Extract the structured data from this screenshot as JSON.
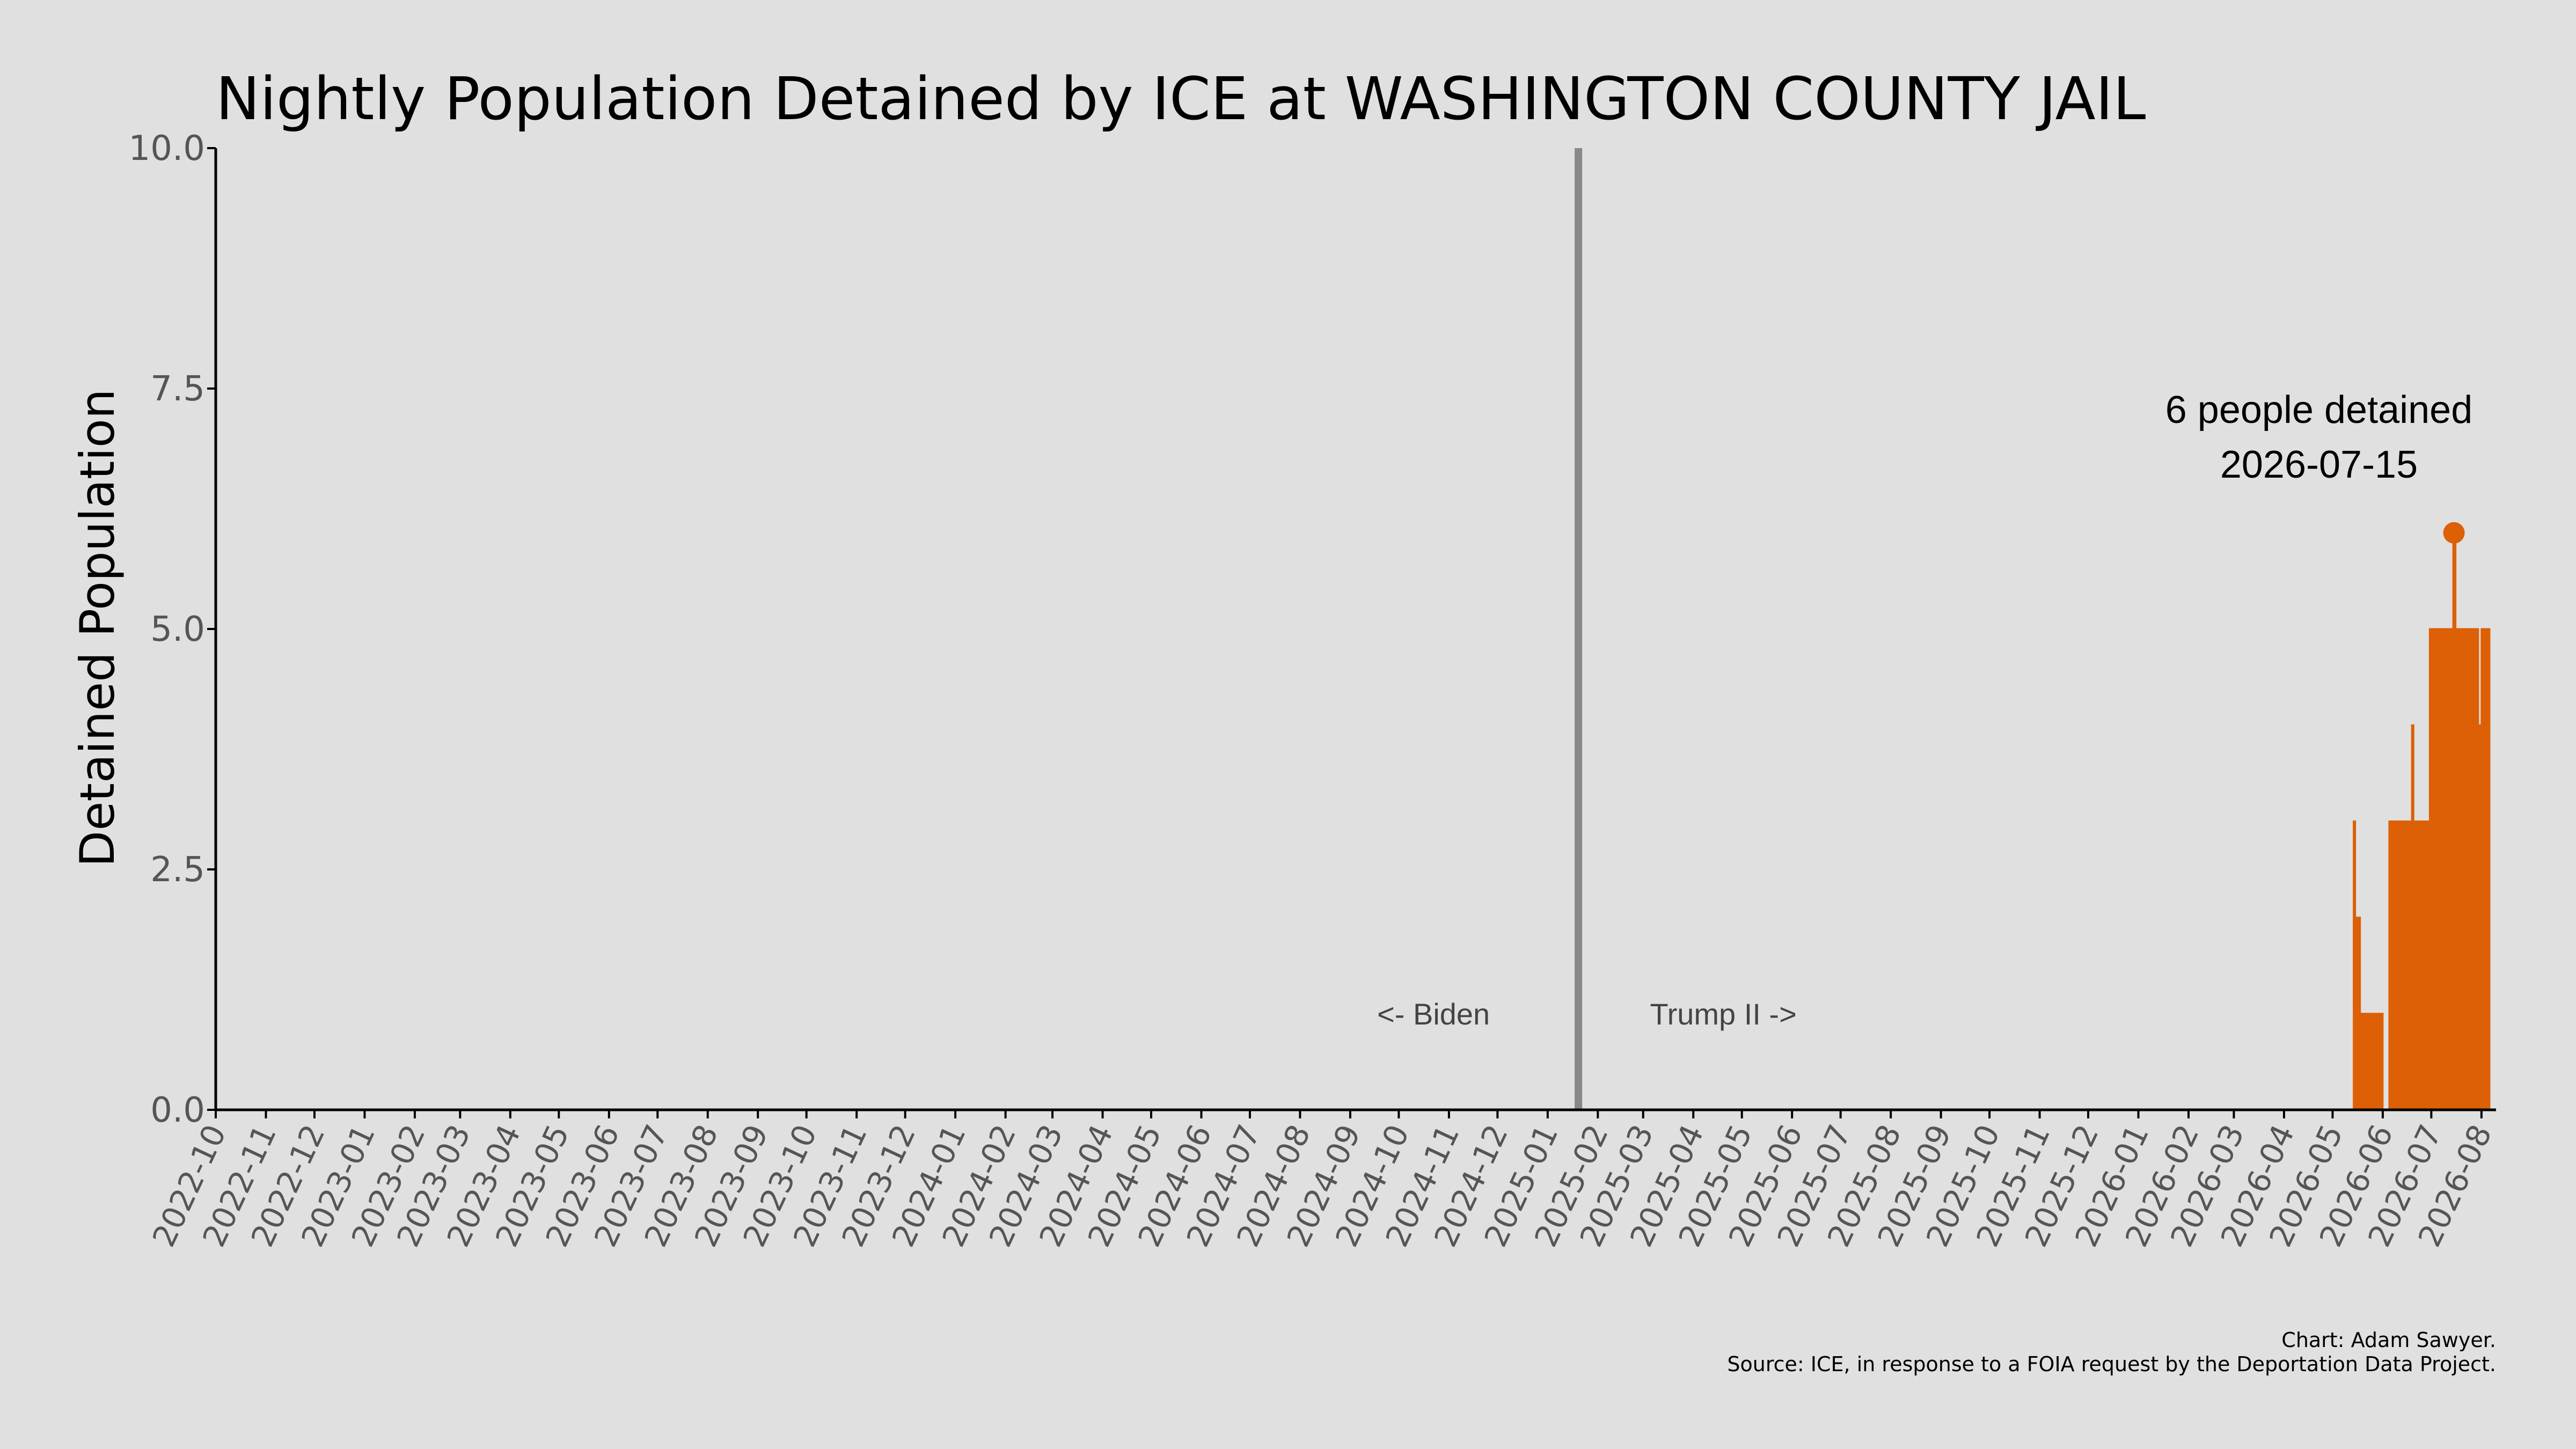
{
  "chart_data": {
    "type": "area",
    "title": "Nightly Population Detained by ICE at WASHINGTON COUNTY JAIL",
    "xlabel": "",
    "ylabel": "Detained Population",
    "ylim": [
      0,
      10
    ],
    "yticks": [
      "0.0",
      "2.5",
      "5.0",
      "7.5",
      "10.0"
    ],
    "xlim": [
      "2022-10-01",
      "2026-08-10"
    ],
    "xticks": [
      "2022-10",
      "2022-11",
      "2022-12",
      "2023-01",
      "2023-02",
      "2023-03",
      "2023-04",
      "2023-05",
      "2023-06",
      "2023-07",
      "2023-08",
      "2023-09",
      "2023-10",
      "2023-11",
      "2023-12",
      "2024-01",
      "2024-02",
      "2024-03",
      "2024-04",
      "2024-05",
      "2024-06",
      "2024-07",
      "2024-08",
      "2024-09",
      "2024-10",
      "2024-11",
      "2024-12",
      "2025-01",
      "2025-02",
      "2025-03",
      "2025-04",
      "2025-05",
      "2025-06",
      "2025-07",
      "2025-08",
      "2025-09",
      "2025-10",
      "2025-11",
      "2025-12",
      "2026-01",
      "2026-02",
      "2026-03",
      "2026-04",
      "2026-05",
      "2026-06",
      "2026-07",
      "2026-08"
    ],
    "grid": false,
    "color": "#dd5f06",
    "series": [
      {
        "points": [
          [
            "2026-05-14",
            3
          ],
          [
            "2026-05-15",
            2
          ],
          [
            "2026-05-16",
            2
          ],
          [
            "2026-05-17",
            2
          ],
          [
            "2026-05-18",
            1
          ],
          [
            "2026-05-22",
            1
          ],
          [
            "2026-05-25",
            1
          ],
          [
            "2026-05-28",
            1
          ],
          [
            "2026-05-31",
            1
          ],
          [
            "2026-06-01",
            0
          ],
          [
            "2026-06-04",
            0
          ],
          [
            "2026-06-05",
            3
          ],
          [
            "2026-06-10",
            3
          ],
          [
            "2026-06-15",
            3
          ],
          [
            "2026-06-18",
            3
          ],
          [
            "2026-06-19",
            4
          ],
          [
            "2026-06-20",
            3
          ],
          [
            "2026-06-25",
            3
          ],
          [
            "2026-06-29",
            3
          ],
          [
            "2026-06-30",
            5
          ],
          [
            "2026-07-01",
            4
          ],
          [
            "2026-07-02",
            5
          ],
          [
            "2026-07-08",
            5
          ],
          [
            "2026-07-14",
            5
          ],
          [
            "2026-07-15",
            6
          ],
          [
            "2026-07-16",
            5
          ],
          [
            "2026-07-20",
            5
          ],
          [
            "2026-07-25",
            5
          ],
          [
            "2026-07-29",
            5
          ],
          [
            "2026-07-30",
            4
          ],
          [
            "2026-07-31",
            2
          ],
          [
            "2026-08-01",
            5
          ],
          [
            "2026-08-05",
            5
          ],
          [
            "2026-08-06",
            0
          ]
        ]
      }
    ],
    "divider": {
      "date": "2025-01-20",
      "color": "#888888"
    },
    "era_labels": {
      "left": "<- Biden",
      "right": "Trump II ->",
      "y": 1.0
    },
    "peak": {
      "date": "2026-07-15",
      "value": 6,
      "label_line1": "6 people detained",
      "label_line2": "2026-07-15"
    }
  },
  "credits": {
    "line1": "Chart: Adam Sawyer.",
    "line2": "Source: ICE, in response to a FOIA request by the Deportation Data Project."
  }
}
